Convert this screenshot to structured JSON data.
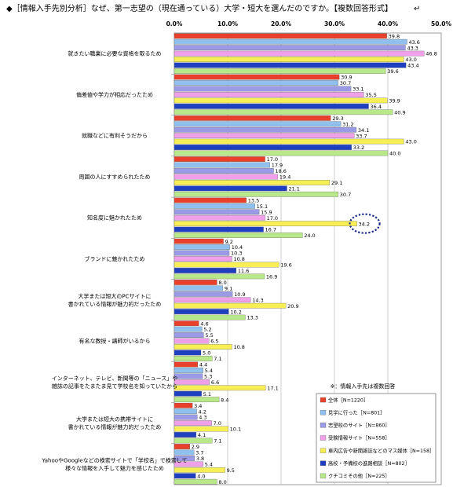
{
  "chart_data": {
    "type": "bar",
    "orientation": "horizontal",
    "title": "◆［情報入手先別分析］なぜ、第一志望の（現在通っている）大学・短大を選んだのですか。【複数回答形式】",
    "title_suffix": "↵",
    "xlim": [
      0,
      50
    ],
    "x_ticks": [
      "0.0%",
      "10.0%",
      "20.0%",
      "30.0%",
      "40.0%",
      "50.0%"
    ],
    "x_tick_values": [
      0,
      10,
      20,
      30,
      40,
      50
    ],
    "grid": true,
    "legend_position": "bottom-right",
    "note": "※：情報入手先は複数回答",
    "categories": [
      [
        "就きたい職業に必要な資格を取るため"
      ],
      [
        "偏差値や学力が相応だったため"
      ],
      [
        "就職などに有利そうだから"
      ],
      [
        "周囲の人にすすめられたため"
      ],
      [
        "知名度に魅かれたため"
      ],
      [
        "ブランドに魅かれたため"
      ],
      [
        "大学または短大のPCサイトに",
        "書かれている情報が魅力的だったため"
      ],
      [
        "有名な教授・講師がいるから"
      ],
      [
        "インターネット、テレビ、新聞等の「ニュース」や",
        "雑誌の記事をたまたま見て学校名を知っていたから"
      ],
      [
        "大学または短大の携帯サイトに",
        "書かれている情報が魅力的だったため"
      ],
      [
        "YahooやGoogleなどの検索サイトで「学校名」で検索して",
        "様々な情報を入手して魅力を感じたため"
      ]
    ],
    "series": [
      {
        "name": "全体［N=1220］",
        "color": "#e8402a",
        "values": [
          39.8,
          30.9,
          29.3,
          17.0,
          13.5,
          9.2,
          8.0,
          4.6,
          4.4,
          3.4,
          2.9
        ]
      },
      {
        "name": "見学に行った［N=801］",
        "color": "#8fc0ee",
        "values": [
          43.6,
          30.7,
          31.2,
          17.9,
          15.1,
          10.4,
          9.1,
          5.2,
          5.4,
          4.2,
          3.7
        ]
      },
      {
        "name": "志望校のサイト［N=860］",
        "color": "#9a9ae6",
        "values": [
          43.3,
          33.1,
          34.1,
          18.6,
          15.9,
          10.3,
          10.9,
          5.5,
          5.3,
          4.3,
          3.8
        ]
      },
      {
        "name": "受験情報サイト［N=558］",
        "color": "#f0a0e8",
        "values": [
          46.8,
          35.5,
          33.7,
          19.4,
          17.0,
          10.8,
          14.3,
          6.5,
          6.6,
          7.0,
          5.4
        ]
      },
      {
        "name": "車内広告や新聞雑誌などのマス媒体［N=158］",
        "color": "#f7ef55",
        "values": [
          43.0,
          39.9,
          43.0,
          29.1,
          34.2,
          19.6,
          20.9,
          10.8,
          17.1,
          10.1,
          9.5
        ]
      },
      {
        "name": "高校・予備校の進路相談［N=802］",
        "color": "#1e3fbf",
        "values": [
          43.4,
          36.4,
          33.2,
          21.1,
          16.7,
          11.6,
          10.2,
          5.0,
          5.1,
          4.1,
          4.0
        ]
      },
      {
        "name": "クチコミその他［N=225］",
        "color": "#b8e88a",
        "values": [
          39.6,
          40.9,
          40.0,
          30.7,
          24.0,
          16.9,
          13.3,
          7.1,
          8.4,
          7.1,
          8.0
        ]
      }
    ],
    "highlight": {
      "category_index": 4,
      "series_index": 4
    }
  }
}
